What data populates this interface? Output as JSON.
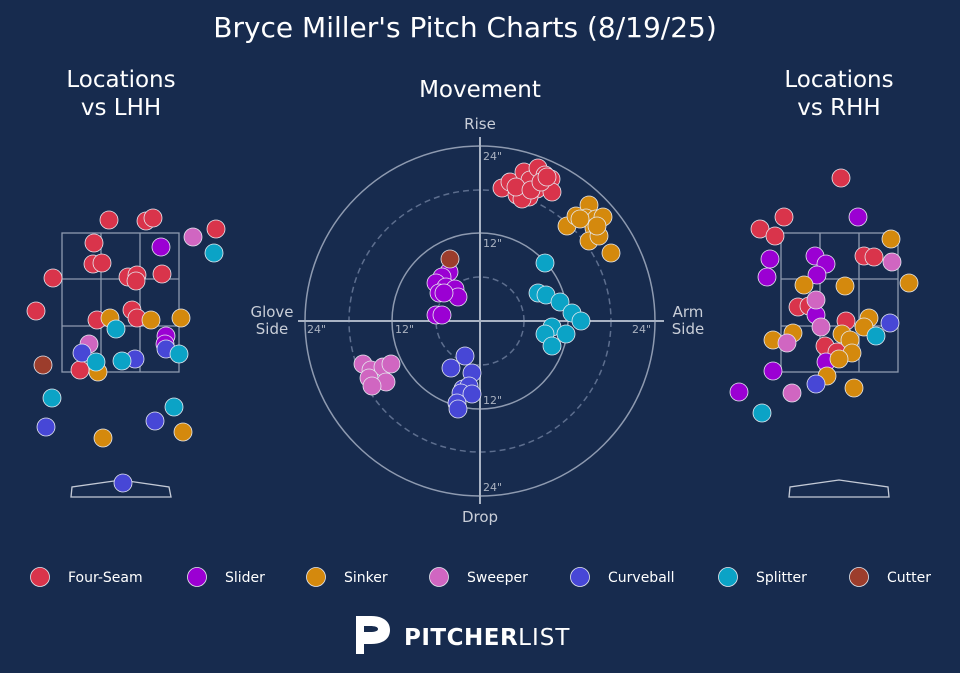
{
  "title": "Bryce Miller's Pitch Charts (8/19/25)",
  "brand": {
    "bold": "PITCHER",
    "light": "LIST"
  },
  "colors": {
    "background": "#172b4e",
    "Four-Seam": "#d9344b",
    "Slider": "#9b00d3",
    "Sinker": "#d4890d",
    "Sweeper": "#d066c1",
    "Curveball": "#4747d6",
    "Splitter": "#0ba3c6",
    "Cutter": "#9c3d2c"
  },
  "chart_data": [
    {
      "type": "scatter",
      "title": "Locations\nvs LHH",
      "xlabel": "",
      "ylabel": "",
      "series": [
        {
          "name": "Four-Seam",
          "points": [
            [
              109,
              220
            ],
            [
              146,
              221
            ],
            [
              153,
              218
            ],
            [
              216,
              229
            ],
            [
              94,
              243
            ],
            [
              93,
              264
            ],
            [
              102,
              263
            ],
            [
              53,
              278
            ],
            [
              128,
              277
            ],
            [
              137,
              275
            ],
            [
              136,
              281
            ],
            [
              162,
              274
            ],
            [
              36,
              311
            ],
            [
              132,
              310
            ],
            [
              97,
              320
            ],
            [
              137,
              318
            ],
            [
              80,
              370
            ]
          ]
        },
        {
          "name": "Slider",
          "points": [
            [
              161,
              247
            ],
            [
              166,
              336
            ],
            [
              165,
              344
            ]
          ]
        },
        {
          "name": "Sinker",
          "points": [
            [
              110,
              318
            ],
            [
              151,
              320
            ],
            [
              181,
              318
            ],
            [
              98,
              372
            ],
            [
              103,
              438
            ],
            [
              183,
              432
            ]
          ]
        },
        {
          "name": "Sweeper",
          "points": [
            [
              193,
              237
            ],
            [
              89,
              344
            ]
          ]
        },
        {
          "name": "Curveball",
          "points": [
            [
              82,
              353
            ],
            [
              135,
              359
            ],
            [
              166,
              349
            ],
            [
              155,
              421
            ],
            [
              46,
              427
            ],
            [
              123,
              483
            ]
          ]
        },
        {
          "name": "Splitter",
          "points": [
            [
              214,
              253
            ],
            [
              116,
              329
            ],
            [
              179,
              354
            ],
            [
              96,
              362
            ],
            [
              122,
              361
            ],
            [
              52,
              398
            ],
            [
              174,
              407
            ]
          ]
        },
        {
          "name": "Cutter",
          "points": [
            [
              43,
              365
            ]
          ]
        }
      ]
    },
    {
      "type": "scatter",
      "title": "Movement",
      "xlabel": "",
      "ylabel": "",
      "axis_labels": {
        "top": "Rise",
        "bottom": "Drop",
        "left": "Glove\nSide",
        "right": "Arm\nSide"
      },
      "ring_labels": [
        "12\"",
        "24\"",
        "12\"",
        "24\"",
        "12\"",
        "24\""
      ],
      "series": [
        {
          "name": "Four-Seam",
          "points": [
            [
              502,
              188
            ],
            [
              510,
              182
            ],
            [
              517,
              195
            ],
            [
              524,
              172
            ],
            [
              530,
              180
            ],
            [
              538,
              168
            ],
            [
              545,
              175
            ],
            [
              551,
              179
            ],
            [
              537,
              189
            ],
            [
              529,
              197
            ],
            [
              552,
              192
            ],
            [
              522,
              199
            ],
            [
              516,
              187
            ],
            [
              531,
              190
            ],
            [
              541,
              182
            ],
            [
              547,
              177
            ]
          ]
        },
        {
          "name": "Slider",
          "points": [
            [
              449,
              272
            ],
            [
              442,
              277
            ],
            [
              436,
              283
            ],
            [
              446,
              287
            ],
            [
              455,
              289
            ],
            [
              458,
              297
            ],
            [
              439,
              293
            ],
            [
              444,
              293
            ],
            [
              436,
              315
            ],
            [
              442,
              315
            ]
          ]
        },
        {
          "name": "Sinker",
          "points": [
            [
              567,
              226
            ],
            [
              576,
              216
            ],
            [
              589,
              205
            ],
            [
              586,
              218
            ],
            [
              596,
              219
            ],
            [
              603,
              217
            ],
            [
              594,
              228
            ],
            [
              589,
              241
            ],
            [
              599,
              236
            ],
            [
              611,
              253
            ],
            [
              580,
              219
            ],
            [
              597,
              226
            ]
          ]
        },
        {
          "name": "Sweeper",
          "points": [
            [
              363,
              364
            ],
            [
              371,
              370
            ],
            [
              383,
              367
            ],
            [
              391,
              364
            ],
            [
              369,
              378
            ],
            [
              386,
              382
            ],
            [
              372,
              386
            ]
          ]
        },
        {
          "name": "Curveball",
          "points": [
            [
              465,
              356
            ],
            [
              451,
              368
            ],
            [
              472,
              373
            ],
            [
              463,
              389
            ],
            [
              469,
              386
            ],
            [
              461,
              393
            ],
            [
              472,
              394
            ],
            [
              457,
              403
            ],
            [
              458,
              409
            ]
          ]
        },
        {
          "name": "Splitter",
          "points": [
            [
              545,
              263
            ],
            [
              538,
              293
            ],
            [
              546,
              295
            ],
            [
              560,
              302
            ],
            [
              572,
              313
            ],
            [
              581,
              321
            ],
            [
              552,
              327
            ],
            [
              545,
              334
            ],
            [
              566,
              334
            ],
            [
              552,
              346
            ]
          ]
        },
        {
          "name": "Cutter",
          "points": [
            [
              450,
              259
            ]
          ]
        }
      ]
    },
    {
      "type": "scatter",
      "title": "Locations\nvs RHH",
      "xlabel": "",
      "ylabel": "",
      "series": [
        {
          "name": "Four-Seam",
          "points": [
            [
              841,
              178
            ],
            [
              784,
              217
            ],
            [
              760,
              229
            ],
            [
              775,
              236
            ],
            [
              864,
              256
            ],
            [
              874,
              257
            ],
            [
              798,
              307
            ],
            [
              809,
              306
            ],
            [
              846,
              321
            ],
            [
              825,
              346
            ],
            [
              837,
              352
            ]
          ]
        },
        {
          "name": "Slider",
          "points": [
            [
              858,
              217
            ],
            [
              770,
              259
            ],
            [
              815,
              256
            ],
            [
              826,
              264
            ],
            [
              817,
              275
            ],
            [
              767,
              277
            ],
            [
              816,
              315
            ],
            [
              826,
              362
            ],
            [
              773,
              371
            ],
            [
              739,
              392
            ]
          ]
        },
        {
          "name": "Sinker",
          "points": [
            [
              891,
              239
            ],
            [
              909,
              283
            ],
            [
              845,
              286
            ],
            [
              804,
              285
            ],
            [
              869,
              318
            ],
            [
              864,
              327
            ],
            [
              793,
              333
            ],
            [
              773,
              340
            ],
            [
              842,
              334
            ],
            [
              850,
              340
            ],
            [
              852,
              353
            ],
            [
              839,
              359
            ],
            [
              827,
              376
            ],
            [
              854,
              388
            ]
          ]
        },
        {
          "name": "Sweeper",
          "points": [
            [
              892,
              262
            ],
            [
              816,
              300
            ],
            [
              821,
              327
            ],
            [
              787,
              343
            ],
            [
              792,
              393
            ]
          ]
        },
        {
          "name": "Curveball",
          "points": [
            [
              890,
              323
            ],
            [
              816,
              384
            ]
          ]
        },
        {
          "name": "Splitter",
          "points": [
            [
              876,
              336
            ],
            [
              762,
              413
            ]
          ]
        },
        {
          "name": "Cutter",
          "points": []
        }
      ]
    }
  ],
  "legend": [
    "Four-Seam",
    "Slider",
    "Sinker",
    "Sweeper",
    "Curveball",
    "Splitter",
    "Cutter"
  ]
}
